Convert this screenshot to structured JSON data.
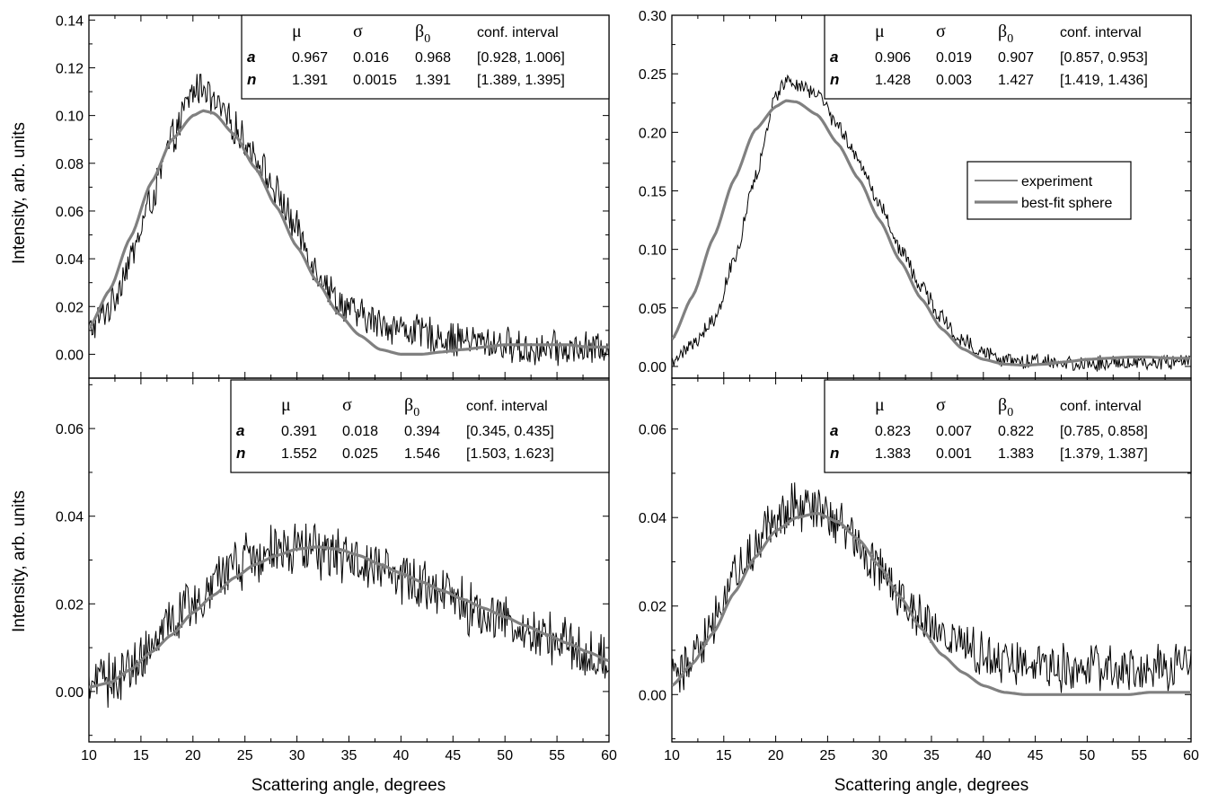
{
  "colors": {
    "experiment": "#000000",
    "fit": "#808080",
    "axes": "#000000"
  },
  "legend": {
    "experiment": "experiment",
    "fit": "best-fit sphere"
  },
  "shared": {
    "xlabel": "Scattering angle, degrees",
    "ylabel": "Intensity, arb. units",
    "xticks": [
      "10",
      "15",
      "20",
      "25",
      "30",
      "35",
      "40",
      "45",
      "50",
      "55",
      "60"
    ]
  },
  "chart_data": [
    {
      "panel": "top-left",
      "type": "line",
      "xlim": [
        10,
        60
      ],
      "ylim": [
        -0.01,
        0.142
      ],
      "yticks": [
        "0.00",
        "0.02",
        "0.04",
        "0.06",
        "0.08",
        "0.10",
        "0.12",
        "0.14"
      ],
      "ytick_values": [
        0,
        0.02,
        0.04,
        0.06,
        0.08,
        0.1,
        0.12,
        0.14
      ],
      "ylabel_shown": true,
      "xlabel_shown": false,
      "legend_shown": false,
      "table": {
        "headers": [
          "μ",
          "σ",
          "β0",
          "conf. interval"
        ],
        "rows": [
          {
            "label": "a",
            "values": [
              "0.967",
              "0.016",
              "0.968",
              "[0.928, 1.006]"
            ]
          },
          {
            "label": "n",
            "values": [
              "1.391",
              "0.0015",
              "1.391",
              "[1.389, 1.395]"
            ]
          }
        ]
      },
      "series": [
        {
          "name": "experiment",
          "style": "noisy",
          "x": [
            10,
            12,
            14,
            16,
            18,
            20,
            21,
            22,
            24,
            26,
            28,
            30,
            32,
            34,
            36,
            38,
            40,
            42,
            44,
            46,
            48,
            50,
            52,
            54,
            56,
            58,
            60
          ],
          "y": [
            0.01,
            0.02,
            0.04,
            0.065,
            0.09,
            0.11,
            0.113,
            0.105,
            0.095,
            0.083,
            0.068,
            0.052,
            0.035,
            0.022,
            0.016,
            0.013,
            0.011,
            0.009,
            0.007,
            0.006,
            0.005,
            0.004,
            0.002,
            0.002,
            0.002,
            0.002,
            0.003
          ]
        },
        {
          "name": "best-fit sphere",
          "style": "smooth",
          "x": [
            10,
            12,
            14,
            16,
            18,
            20,
            21,
            22,
            24,
            26,
            28,
            30,
            32,
            34,
            36,
            38,
            40,
            42,
            44,
            46,
            48,
            50,
            52,
            54,
            56,
            58,
            60
          ],
          "y": [
            0.011,
            0.027,
            0.049,
            0.072,
            0.09,
            0.1,
            0.102,
            0.101,
            0.092,
            0.078,
            0.062,
            0.045,
            0.03,
            0.017,
            0.008,
            0.002,
            0.0,
            0.0,
            0.001,
            0.002,
            0.003,
            0.004,
            0.004,
            0.004,
            0.004,
            0.003,
            0.003
          ]
        }
      ]
    },
    {
      "panel": "top-right",
      "type": "line",
      "xlim": [
        10,
        60
      ],
      "ylim": [
        -0.01,
        0.3
      ],
      "yticks": [
        "0.00",
        "0.05",
        "0.10",
        "0.15",
        "0.20",
        "0.25",
        "0.30"
      ],
      "ytick_values": [
        0,
        0.05,
        0.1,
        0.15,
        0.2,
        0.25,
        0.3
      ],
      "ylabel_shown": false,
      "xlabel_shown": false,
      "legend_shown": true,
      "table": {
        "headers": [
          "μ",
          "σ",
          "β0",
          "conf. interval"
        ],
        "rows": [
          {
            "label": "a",
            "values": [
              "0.906",
              "0.019",
              "0.907",
              "[0.857, 0.953]"
            ]
          },
          {
            "label": "n",
            "values": [
              "1.428",
              "0.003",
              "1.427",
              "[1.419, 1.436]"
            ]
          }
        ]
      },
      "series": [
        {
          "name": "experiment",
          "style": "noisy",
          "x": [
            10,
            12,
            14,
            16,
            18,
            20,
            21,
            22,
            24,
            26,
            28,
            30,
            32,
            34,
            36,
            38,
            40,
            42,
            44,
            46,
            48,
            50,
            52,
            54,
            56,
            58,
            60
          ],
          "y": [
            0.005,
            0.018,
            0.04,
            0.09,
            0.16,
            0.23,
            0.245,
            0.24,
            0.232,
            0.205,
            0.175,
            0.14,
            0.1,
            0.068,
            0.042,
            0.022,
            0.012,
            0.006,
            0.004,
            0.003,
            0.003,
            0.003,
            0.003,
            0.003,
            0.004,
            0.004,
            0.004
          ]
        },
        {
          "name": "best-fit sphere",
          "style": "smooth",
          "x": [
            10,
            12,
            14,
            16,
            18,
            20,
            21,
            22,
            24,
            26,
            28,
            30,
            32,
            34,
            36,
            38,
            40,
            42,
            44,
            46,
            48,
            50,
            52,
            54,
            56,
            58,
            60
          ],
          "y": [
            0.023,
            0.06,
            0.11,
            0.16,
            0.202,
            0.222,
            0.227,
            0.226,
            0.215,
            0.19,
            0.16,
            0.125,
            0.09,
            0.058,
            0.032,
            0.015,
            0.006,
            0.002,
            0.001,
            0.002,
            0.004,
            0.006,
            0.007,
            0.008,
            0.008,
            0.007,
            0.007
          ]
        }
      ]
    },
    {
      "panel": "bottom-left",
      "type": "line",
      "xlim": [
        10,
        60
      ],
      "ylim": [
        -0.0115,
        0.0715
      ],
      "yticks": [
        "0.00",
        "0.02",
        "0.04",
        "0.06"
      ],
      "ytick_values": [
        0,
        0.02,
        0.04,
        0.06
      ],
      "ylabel_shown": true,
      "xlabel_shown": true,
      "legend_shown": false,
      "table": {
        "headers": [
          "μ",
          "σ",
          "β0",
          "conf. interval"
        ],
        "rows": [
          {
            "label": "a",
            "values": [
              "0.391",
              "0.018",
              "0.394",
              "[0.345, 0.435]"
            ]
          },
          {
            "label": "n",
            "values": [
              "1.552",
              "0.025",
              "1.546",
              "[1.503, 1.623]"
            ]
          }
        ]
      },
      "series": [
        {
          "name": "experiment",
          "style": "noisy",
          "x": [
            10,
            12,
            14,
            16,
            18,
            20,
            22,
            24,
            26,
            28,
            30,
            32,
            34,
            36,
            38,
            40,
            42,
            44,
            46,
            48,
            50,
            52,
            54,
            56,
            58,
            60
          ],
          "y": [
            0.001,
            0.003,
            0.006,
            0.01,
            0.015,
            0.02,
            0.024,
            0.028,
            0.031,
            0.033,
            0.033,
            0.032,
            0.031,
            0.03,
            0.028,
            0.026,
            0.024,
            0.022,
            0.02,
            0.018,
            0.016,
            0.014,
            0.012,
            0.011,
            0.009,
            0.008
          ]
        },
        {
          "name": "best-fit sphere",
          "style": "smooth",
          "x": [
            10,
            12,
            14,
            16,
            18,
            20,
            22,
            24,
            26,
            28,
            30,
            32,
            34,
            36,
            38,
            40,
            42,
            44,
            46,
            48,
            50,
            52,
            54,
            56,
            58,
            60
          ],
          "y": [
            0.001,
            0.002,
            0.005,
            0.009,
            0.013,
            0.018,
            0.022,
            0.026,
            0.029,
            0.031,
            0.0325,
            0.033,
            0.0325,
            0.031,
            0.029,
            0.027,
            0.025,
            0.023,
            0.021,
            0.019,
            0.017,
            0.015,
            0.013,
            0.011,
            0.009,
            0.007
          ]
        }
      ]
    },
    {
      "panel": "bottom-right",
      "type": "line",
      "xlim": [
        10,
        60
      ],
      "ylim": [
        -0.0107,
        0.0715
      ],
      "yticks": [
        "0.00",
        "0.02",
        "0.04",
        "0.06"
      ],
      "ytick_values": [
        0,
        0.02,
        0.04,
        0.06
      ],
      "ylabel_shown": false,
      "xlabel_shown": true,
      "legend_shown": false,
      "table": {
        "headers": [
          "μ",
          "σ",
          "β0",
          "conf. interval"
        ],
        "rows": [
          {
            "label": "a",
            "values": [
              "0.823",
              "0.007",
              "0.822",
              "[0.785, 0.858]"
            ]
          },
          {
            "label": "n",
            "values": [
              "1.383",
              "0.001",
              "1.383",
              "[1.379, 1.387]"
            ]
          }
        ]
      },
      "series": [
        {
          "name": "experiment",
          "style": "noisy",
          "x": [
            10,
            12,
            14,
            16,
            18,
            20,
            22,
            24,
            26,
            28,
            30,
            32,
            34,
            36,
            38,
            40,
            42,
            44,
            46,
            48,
            50,
            52,
            54,
            56,
            58,
            60
          ],
          "y": [
            0.003,
            0.008,
            0.016,
            0.026,
            0.034,
            0.04,
            0.043,
            0.042,
            0.039,
            0.034,
            0.028,
            0.022,
            0.017,
            0.014,
            0.011,
            0.009,
            0.008,
            0.007,
            0.007,
            0.006,
            0.006,
            0.006,
            0.006,
            0.006,
            0.006,
            0.006
          ]
        },
        {
          "name": "best-fit sphere",
          "style": "smooth",
          "x": [
            10,
            12,
            14,
            16,
            18,
            20,
            22,
            24,
            26,
            28,
            30,
            32,
            34,
            36,
            38,
            40,
            42,
            44,
            46,
            48,
            50,
            52,
            54,
            56,
            58,
            60
          ],
          "y": [
            0.002,
            0.007,
            0.014,
            0.023,
            0.031,
            0.037,
            0.04,
            0.041,
            0.039,
            0.035,
            0.029,
            0.022,
            0.015,
            0.009,
            0.005,
            0.002,
            0.0005,
            0.0,
            0.0,
            0.0,
            0.0,
            0.0,
            0.0,
            0.0005,
            0.0005,
            0.0005
          ]
        }
      ]
    }
  ]
}
